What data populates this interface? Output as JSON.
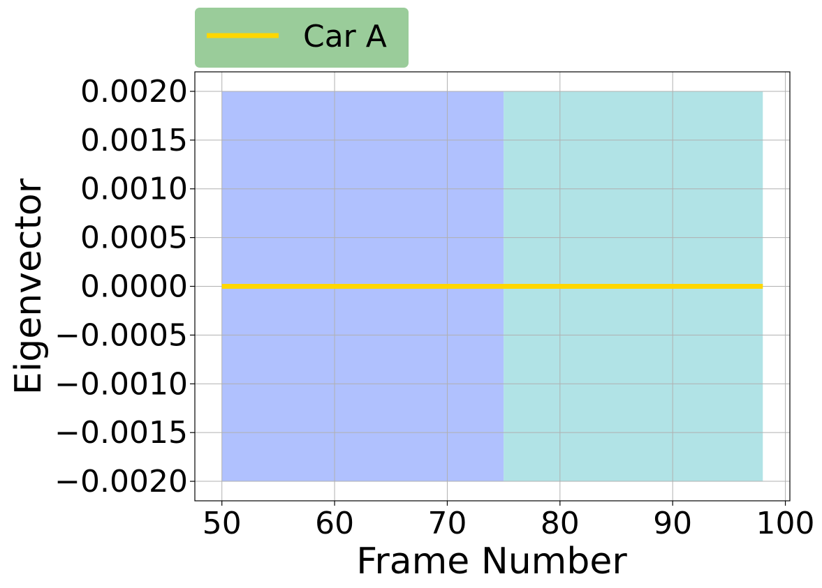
{
  "chart_data": {
    "type": "line",
    "title": "",
    "xlabel": "Frame Number",
    "ylabel": "Eigenvector",
    "xlim": [
      47.6,
      100.4
    ],
    "ylim": [
      -0.0022,
      0.0022
    ],
    "x_ticks": [
      50,
      60,
      70,
      80,
      90,
      100
    ],
    "x_tick_labels": [
      "50",
      "60",
      "70",
      "80",
      "90",
      "100"
    ],
    "y_ticks": [
      0.002,
      0.0015,
      0.001,
      0.0005,
      0,
      -0.0005,
      -0.001,
      -0.0015,
      -0.002
    ],
    "y_tick_labels": [
      "0.0020",
      "0.0015",
      "0.0010",
      "0.0005",
      "0.0000",
      "−0.0005",
      "−0.0010",
      "−0.0015",
      "−0.0020"
    ],
    "grid": true,
    "legend_position": "above top-left",
    "legend_background": "#9acc9a",
    "shaded_regions": [
      {
        "x_start": 50,
        "x_end": 75,
        "y_start": -0.002,
        "y_end": 0.002,
        "color": "#b0c1fe"
      },
      {
        "x_start": 75,
        "x_end": 98,
        "y_start": -0.002,
        "y_end": 0.002,
        "color": "#b1e3e6"
      }
    ],
    "series": [
      {
        "name": "Car A",
        "color": "#ffd700",
        "x": [
          50,
          98
        ],
        "y": [
          0,
          0
        ]
      }
    ]
  }
}
